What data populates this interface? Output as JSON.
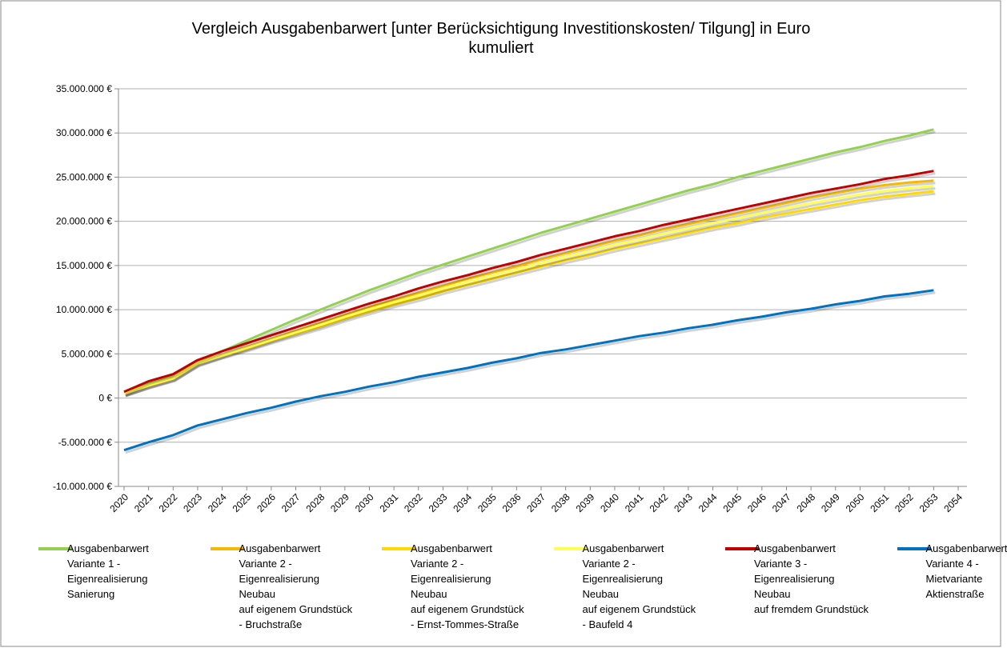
{
  "chart_data": {
    "type": "line",
    "title": "Vergleich Ausgabenbarwert [unter Berücksichtigung Investitionskosten/ Tilgung] in Euro\nkumuliert",
    "categories": [
      "2020",
      "2021",
      "2022",
      "2023",
      "2024",
      "2025",
      "2026",
      "2027",
      "2028",
      "2029",
      "2030",
      "2031",
      "2032",
      "2033",
      "2034",
      "2035",
      "2036",
      "2037",
      "2038",
      "2039",
      "2040",
      "2041",
      "2042",
      "2043",
      "2044",
      "2045",
      "2046",
      "2047",
      "2048",
      "2049",
      "2050",
      "2051",
      "2052",
      "2053",
      "2054"
    ],
    "ylim": [
      -10000000,
      35000000
    ],
    "yticks": [
      {
        "value": -10000000,
        "label": "-10.000.000 €"
      },
      {
        "value": -5000000,
        "label": "-5.000.000 €"
      },
      {
        "value": 0,
        "label": "0 €"
      },
      {
        "value": 5000000,
        "label": "5.000.000 €"
      },
      {
        "value": 10000000,
        "label": "10.000.000 €"
      },
      {
        "value": 15000000,
        "label": "15.000.000 €"
      },
      {
        "value": 20000000,
        "label": "20.000.000 €"
      },
      {
        "value": 25000000,
        "label": "25.000.000 €"
      },
      {
        "value": 30000000,
        "label": "30.000.000 €"
      },
      {
        "value": 35000000,
        "label": "35.000.000 €"
      }
    ],
    "grid": true,
    "legend": "bottom",
    "series": [
      {
        "name": "Ausgabenbarwert\nVariante 1 -\nEigenrealisierung\nSanierung",
        "color": "#92d050",
        "values": [
          600000,
          1700000,
          2500000,
          4200000,
          5300000,
          6500000,
          7700000,
          8900000,
          10000000,
          11100000,
          12200000,
          13200000,
          14200000,
          15100000,
          16000000,
          16900000,
          17800000,
          18700000,
          19500000,
          20300000,
          21100000,
          21900000,
          22700000,
          23500000,
          24200000,
          25000000,
          25700000,
          26400000,
          27100000,
          27800000,
          28400000,
          29100000,
          29700000,
          30400000,
          null
        ]
      },
      {
        "name": "Ausgabenbarwert\nVariante 2 -\nEigenrealisierung\nNeubau\nauf eigenem Grundstück\n - Bruchstraße",
        "color": "#f5b800",
        "values": [
          500000,
          1500000,
          2300000,
          4000000,
          4900000,
          5800000,
          6700000,
          7600000,
          8500000,
          9400000,
          10300000,
          11100000,
          11900000,
          12700000,
          13500000,
          14200000,
          14900000,
          15700000,
          16400000,
          17100000,
          17800000,
          18400000,
          19100000,
          19700000,
          20300000,
          20900000,
          21500000,
          22100000,
          22700000,
          23200000,
          23700000,
          24100000,
          24400000,
          24600000,
          null
        ]
      },
      {
        "name": "Ausgabenbarwert\nVariante 2 -\nEigenrealisierung\nNeubau\nauf eigenem Grundstück\n - Ernst-Tommes-Straße",
        "color": "#ffd800",
        "values": [
          500000,
          1400000,
          2200000,
          3900000,
          4800000,
          5600000,
          6500000,
          7300000,
          8100000,
          9000000,
          9800000,
          10600000,
          11300000,
          12100000,
          12800000,
          13500000,
          14200000,
          14900000,
          15600000,
          16200000,
          16900000,
          17500000,
          18100000,
          18700000,
          19300000,
          19800000,
          20400000,
          20900000,
          21400000,
          21900000,
          22400000,
          22800000,
          23100000,
          23400000,
          null
        ]
      },
      {
        "name": "Ausgabenbarwert\nVariante 2 -\nEigenrealisierung\nNeubau\nauf eigenem Grundstück\n - Baufeld 4",
        "color": "#ffff55",
        "values": [
          500000,
          1450000,
          2250000,
          3950000,
          4850000,
          5700000,
          6600000,
          7450000,
          8300000,
          9200000,
          10050000,
          10850000,
          11600000,
          12400000,
          13150000,
          13850000,
          14550000,
          15300000,
          16000000,
          16650000,
          17350000,
          17950000,
          18600000,
          19200000,
          19800000,
          20350000,
          20950000,
          21500000,
          22050000,
          22550000,
          23050000,
          23450000,
          23750000,
          24000000,
          null
        ]
      },
      {
        "name": "Ausgabenbarwert\nVariante 3 -\nEigenrealisierung\nNeubau\nauf fremdem Grundstück",
        "color": "#c00000",
        "values": [
          700000,
          1900000,
          2700000,
          4300000,
          5300000,
          6200000,
          7100000,
          8000000,
          8900000,
          9800000,
          10700000,
          11500000,
          12400000,
          13200000,
          13900000,
          14700000,
          15400000,
          16200000,
          16900000,
          17600000,
          18300000,
          18900000,
          19600000,
          20200000,
          20800000,
          21400000,
          22000000,
          22600000,
          23200000,
          23700000,
          24200000,
          24800000,
          25200000,
          25700000,
          null
        ]
      },
      {
        "name": "Ausgabenbarwert\nVariante 4 -\nMietvariante\nAktienstraße",
        "color": "#0070c0",
        "values": [
          -5900000,
          -5000000,
          -4200000,
          -3100000,
          -2400000,
          -1700000,
          -1100000,
          -400000,
          200000,
          700000,
          1300000,
          1800000,
          2400000,
          2900000,
          3400000,
          4000000,
          4500000,
          5100000,
          5500000,
          6000000,
          6500000,
          7000000,
          7400000,
          7900000,
          8300000,
          8800000,
          9200000,
          9700000,
          10100000,
          10600000,
          11000000,
          11500000,
          11800000,
          12200000,
          null
        ]
      }
    ]
  }
}
